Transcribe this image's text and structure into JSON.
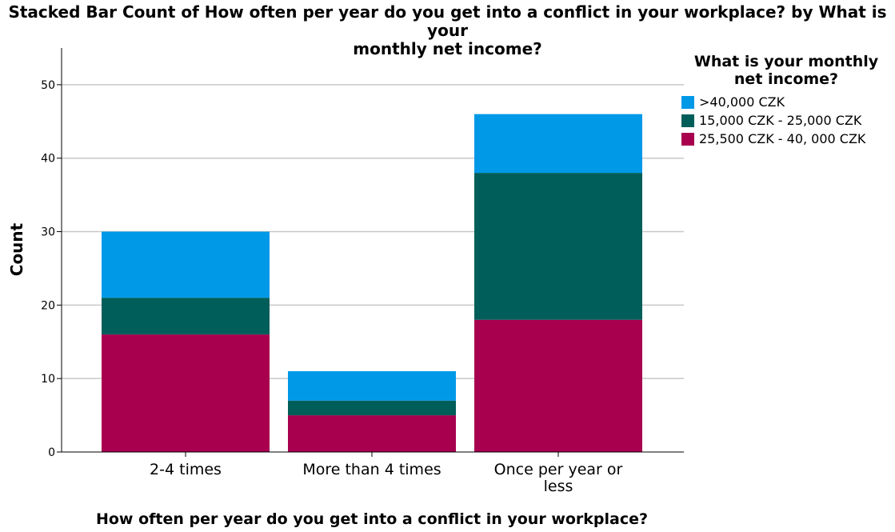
{
  "chart_data": {
    "type": "bar",
    "stacked": true,
    "title": "Stacked Bar Count of How often per year do you get into a conflict in your workplace? by What is your monthly net income?",
    "title_lines": [
      "Stacked Bar Count of How often per year do you get into a conflict in your workplace? by What is your",
      "monthly net income?"
    ],
    "xlabel": "How often per year do you get into a conflict in your workplace?",
    "ylabel": "Count",
    "ylim": [
      0,
      55
    ],
    "yticks": [
      0,
      10,
      20,
      30,
      40,
      50
    ],
    "grid": true,
    "categories": [
      "2-4 times",
      "More than 4 times",
      "Once per year or less"
    ],
    "category_lines": [
      [
        "2-4 times"
      ],
      [
        "More than 4 times"
      ],
      [
        "Once per year or",
        "less"
      ]
    ],
    "legend_title": "What is your monthly net income?",
    "legend_title_lines": [
      "What is your monthly",
      "net income?"
    ],
    "legend_position": "right",
    "series": [
      {
        "name": "25,500 CZK - 40, 000 CZK",
        "color": "#A8004F",
        "values": [
          16,
          5,
          18
        ]
      },
      {
        "name": "15,000 CZK - 25,000 CZK",
        "color": "#005E5A",
        "values": [
          5,
          2,
          20
        ]
      },
      {
        "name": ">40,000 CZK",
        "color": "#0099E8",
        "values": [
          9,
          4,
          8
        ]
      }
    ],
    "legend_order": [
      2,
      1,
      0
    ]
  }
}
